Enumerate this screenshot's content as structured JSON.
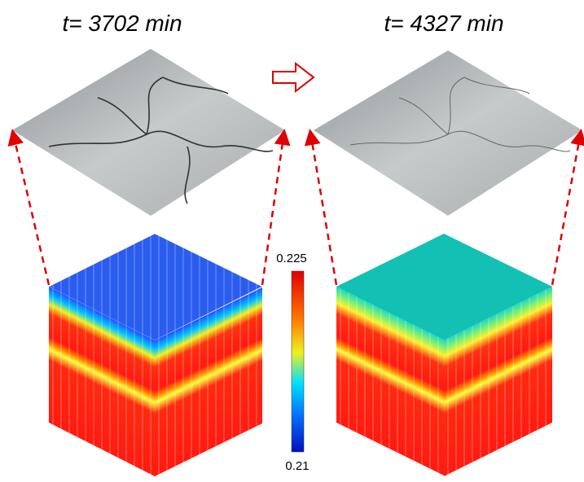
{
  "panels": [
    {
      "title": "t= 3702 min"
    },
    {
      "title": "t= 4327 min"
    }
  ],
  "colorbar": {
    "max": 0.225,
    "min": 0.21
  }
}
